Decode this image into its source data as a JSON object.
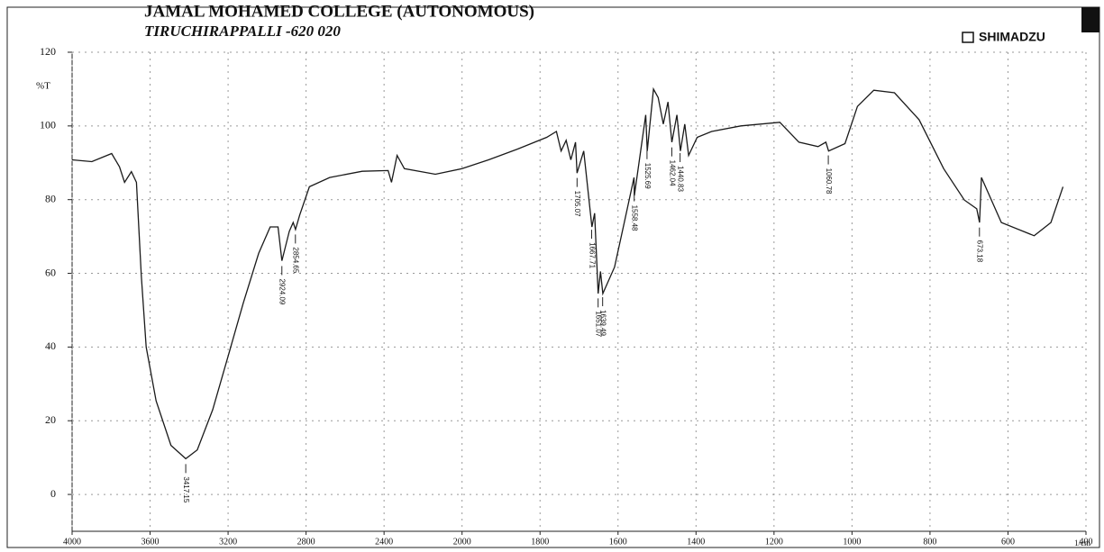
{
  "chart_data": {
    "type": "line",
    "title": "JAMAL MOHAMED COLLEGE (AUTONOMOUS)",
    "subtitle": "TIRUCHIRAPPALLI -620 020",
    "brand": "SHIMADZU",
    "y_label": "%T",
    "x_label": "1/cm",
    "color": "#1a1a1a",
    "grid": true,
    "xlim": [
      4000,
      400
    ],
    "xticks": [
      4000,
      3600,
      3200,
      2800,
      2400,
      2000,
      1800,
      1600,
      1400,
      1200,
      1000,
      800,
      600,
      400
    ],
    "ylim": [
      -10,
      120
    ],
    "yticks": [
      0,
      20,
      40,
      60,
      80,
      100,
      120
    ],
    "x": [
      4000,
      3899,
      3797,
      3757,
      3731,
      3696,
      3670,
      3645,
      3620,
      3569,
      3493,
      3417,
      3358,
      3279,
      3200,
      3122,
      3043,
      2984,
      2944,
      2924,
      2886,
      2866,
      2854,
      2833,
      2783,
      2679,
      2512,
      2379,
      2362,
      2333,
      2296,
      2137,
      2000,
      1932,
      1858,
      1783,
      1758,
      1746,
      1733,
      1721,
      1709,
      1705,
      1688,
      1667,
      1660,
      1651,
      1645,
      1639,
      1609,
      1584,
      1559,
      1558,
      1529,
      1525,
      1509,
      1497,
      1484,
      1472,
      1462,
      1449,
      1440,
      1429,
      1419,
      1397,
      1360,
      1285,
      1185,
      1136,
      1087,
      1067,
      1060,
      1018,
      986,
      944,
      891,
      828,
      765,
      712,
      680,
      673,
      668,
      617,
      533,
      490,
      459
    ],
    "y": [
      90.8,
      90.3,
      92.5,
      88.9,
      84.7,
      87.6,
      84.7,
      59.3,
      40,
      25.4,
      13.3,
      9.7,
      12.1,
      23,
      37.5,
      52,
      65.4,
      72.6,
      72.6,
      63.4,
      71.4,
      73.8,
      71.9,
      75.8,
      83.5,
      86,
      87.7,
      87.9,
      84.7,
      92,
      88.4,
      86.9,
      88.4,
      90.8,
      93.7,
      96.9,
      98.5,
      93.2,
      96.1,
      90.8,
      95.6,
      87.2,
      93.2,
      72.6,
      76.3,
      54.5,
      60.5,
      54.5,
      61.7,
      73.8,
      86,
      81.1,
      103,
      93.2,
      110,
      107.7,
      100.5,
      106.5,
      95.6,
      103,
      93.2,
      100.5,
      92,
      96.9,
      98.5,
      100,
      101,
      95.6,
      94.4,
      95.6,
      93.2,
      95.2,
      105.3,
      109.7,
      109,
      101.7,
      88.4,
      79.9,
      77.5,
      73.8,
      86,
      73.8,
      70.2,
      73.8,
      83.5
    ],
    "peaks": [
      3417.15,
      2924.09,
      2854.65,
      1705.07,
      1667.71,
      1651.07,
      1639.49,
      1558.48,
      1525.69,
      1462.04,
      1440.83,
      1060.78,
      673.18
    ]
  }
}
